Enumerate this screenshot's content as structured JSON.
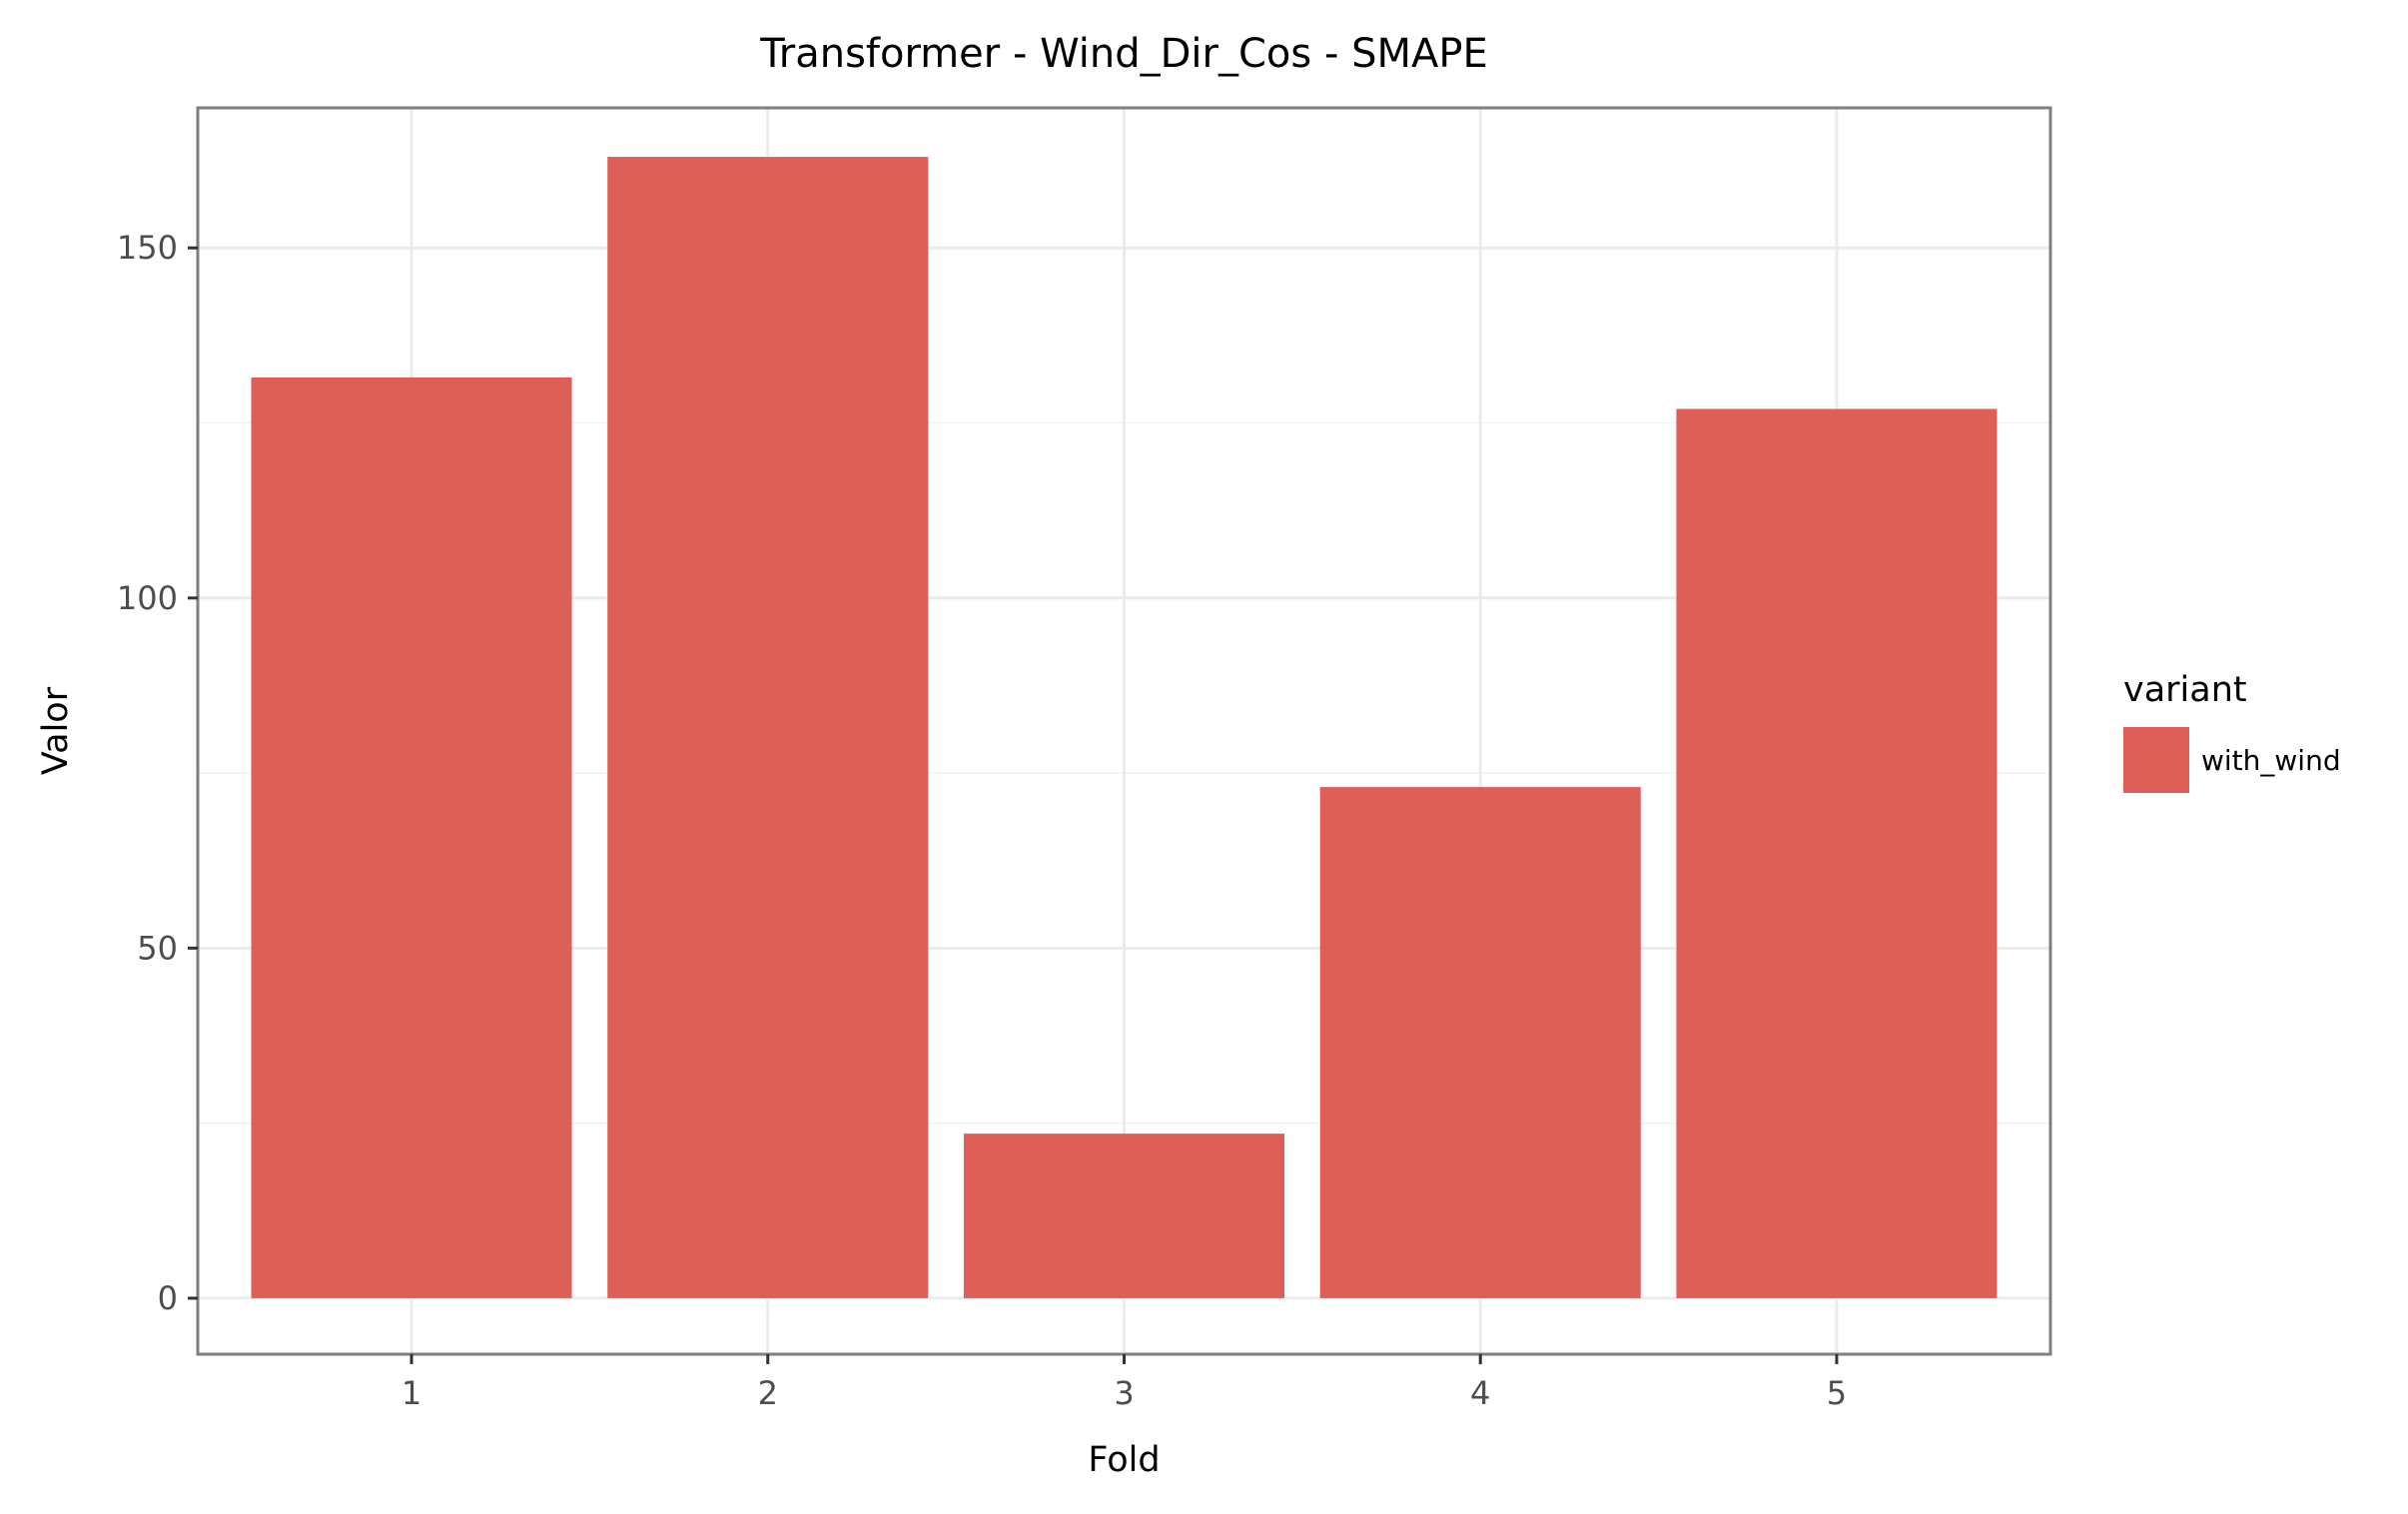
{
  "chart_data": {
    "type": "bar",
    "title": "Transformer - Wind_Dir_Cos - SMAPE",
    "xlabel": "Fold",
    "ylabel": "Valor",
    "categories": [
      "1",
      "2",
      "3",
      "4",
      "5"
    ],
    "series": [
      {
        "name": "with_wind",
        "color": "#dd5f57",
        "values": [
          131.5,
          163.0,
          23.5,
          73.0,
          127.0
        ]
      }
    ],
    "ylim": [
      -8,
      170
    ],
    "yticks": [
      0,
      50,
      100,
      150
    ],
    "ytick_labels": [
      "0",
      "50",
      "100",
      "150"
    ],
    "grid": true,
    "legend": {
      "title": "variant",
      "position": "right"
    }
  }
}
